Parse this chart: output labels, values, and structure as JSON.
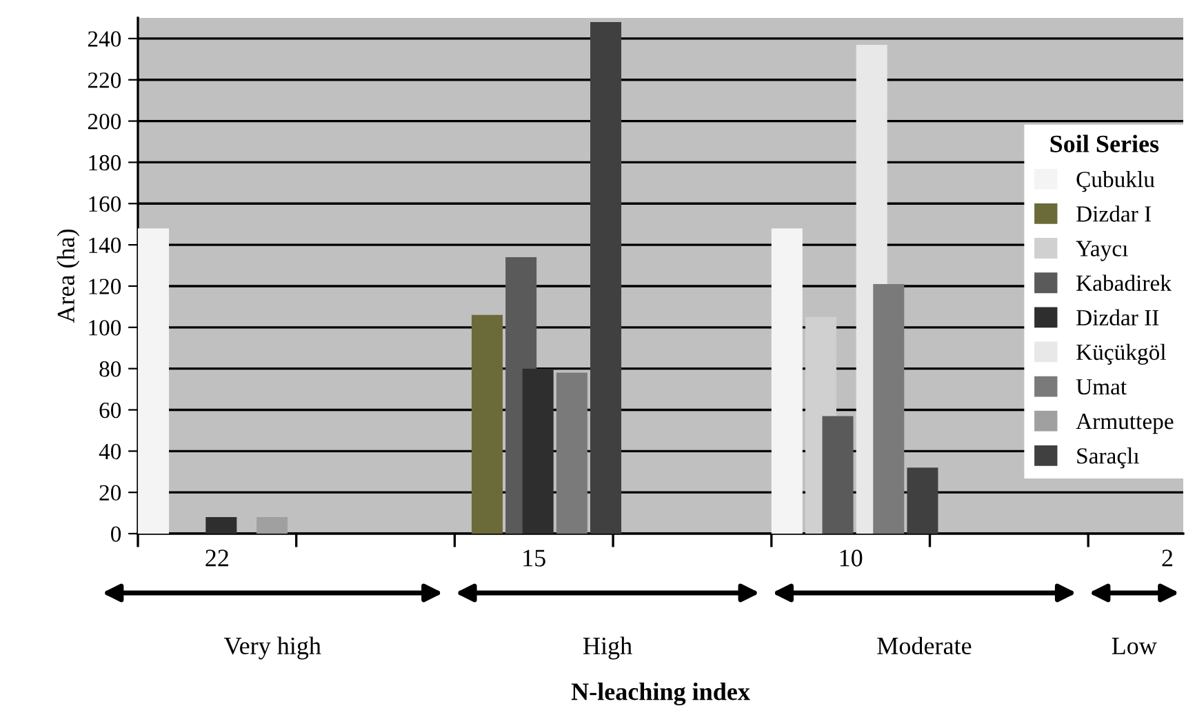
{
  "chart_data": {
    "type": "bar",
    "xlabel": "N-leaching index",
    "ylabel": "Area (ha)",
    "legend_title": "Soil Series",
    "categories": [
      "22",
      null,
      "15",
      null,
      "10",
      null,
      "2"
    ],
    "series": [
      {
        "name": "Çubuklu",
        "color": "#f4f4f4",
        "values": [
          148,
          null,
          null,
          null,
          148,
          null,
          null
        ]
      },
      {
        "name": "Dizdar I",
        "color": "#6b6b3a",
        "values": [
          null,
          null,
          106,
          null,
          null,
          null,
          null
        ]
      },
      {
        "name": "Yaycı",
        "color": "#d0d0d0",
        "values": [
          null,
          null,
          null,
          null,
          105,
          null,
          null
        ]
      },
      {
        "name": "Kabadirek",
        "color": "#5a5a5a",
        "values": [
          null,
          null,
          134,
          null,
          57,
          null,
          null
        ]
      },
      {
        "name": "Dizdar II",
        "color": "#2e2e2e",
        "values": [
          8,
          null,
          80,
          null,
          null,
          null,
          null
        ]
      },
      {
        "name": "Küçükgöl",
        "color": "#e8e8e8",
        "values": [
          null,
          null,
          null,
          null,
          237,
          null,
          null
        ]
      },
      {
        "name": "Umat",
        "color": "#7a7a7a",
        "values": [
          null,
          null,
          78,
          null,
          121,
          null,
          null
        ]
      },
      {
        "name": "Armuttepe",
        "color": "#a0a0a0",
        "values": [
          8,
          null,
          null,
          null,
          null,
          null,
          null
        ]
      },
      {
        "name": "Saraçlı",
        "color": "#404040",
        "values": [
          null,
          null,
          248,
          null,
          32,
          null,
          null
        ]
      }
    ],
    "ylim": [
      0,
      250
    ],
    "yticks": [
      0,
      20,
      40,
      60,
      80,
      100,
      120,
      140,
      160,
      180,
      200,
      220,
      240
    ],
    "grid": "y",
    "legend": "right",
    "annotations": [
      "Very high",
      "High",
      "Moderate",
      "Low"
    ]
  }
}
